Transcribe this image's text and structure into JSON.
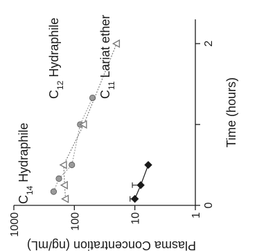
{
  "chart_data": {
    "type": "line",
    "orientation": "rotated 90 degrees counter-clockwise",
    "title": "",
    "xlabel": "Time (hours)",
    "ylabel": "Plasma Concentration (ng/mL)",
    "xlim": [
      0,
      2.3
    ],
    "ylim": [
      1,
      1000
    ],
    "y_scale": "log",
    "x_ticks": [
      {
        "value": 0,
        "label": "0"
      },
      {
        "value": 1,
        "label": ""
      },
      {
        "value": 2,
        "label": "2"
      }
    ],
    "y_ticks": [
      {
        "value": 1,
        "label": "1"
      },
      {
        "value": 10,
        "label": "10"
      },
      {
        "value": 100,
        "label": "100"
      },
      {
        "value": 1000,
        "label": "1000"
      }
    ],
    "series": [
      {
        "name": "C14 Hydraphile",
        "label_main": "C",
        "label_sub": "14",
        "label_rest": " Hydraphile",
        "marker": "circle",
        "color": "#9a9a9a",
        "x": [
          0.17,
          0.33,
          0.5,
          1.0,
          1.33
        ],
        "y": [
          220,
          180,
          110,
          80,
          50
        ],
        "errors": []
      },
      {
        "name": "C12 Hydraphile",
        "label_main": "C",
        "label_sub": "12",
        "label_rest": " Hydraphile",
        "marker": "triangle",
        "color": "#7a7a7a",
        "x": [
          0.08,
          0.25,
          0.5,
          1.0,
          2.0
        ],
        "y": [
          140,
          145,
          150,
          70,
          20
        ],
        "errors": []
      },
      {
        "name": "C11 Lariat ether",
        "label_main": "C",
        "label_sub": "11",
        "label_rest": " Lariat ether",
        "marker": "diamond",
        "color": "#1a1a1a",
        "x": [
          0.08,
          0.25,
          0.5
        ],
        "y": [
          10,
          8,
          6
        ],
        "errors": [
          2,
          3,
          0
        ]
      }
    ]
  }
}
